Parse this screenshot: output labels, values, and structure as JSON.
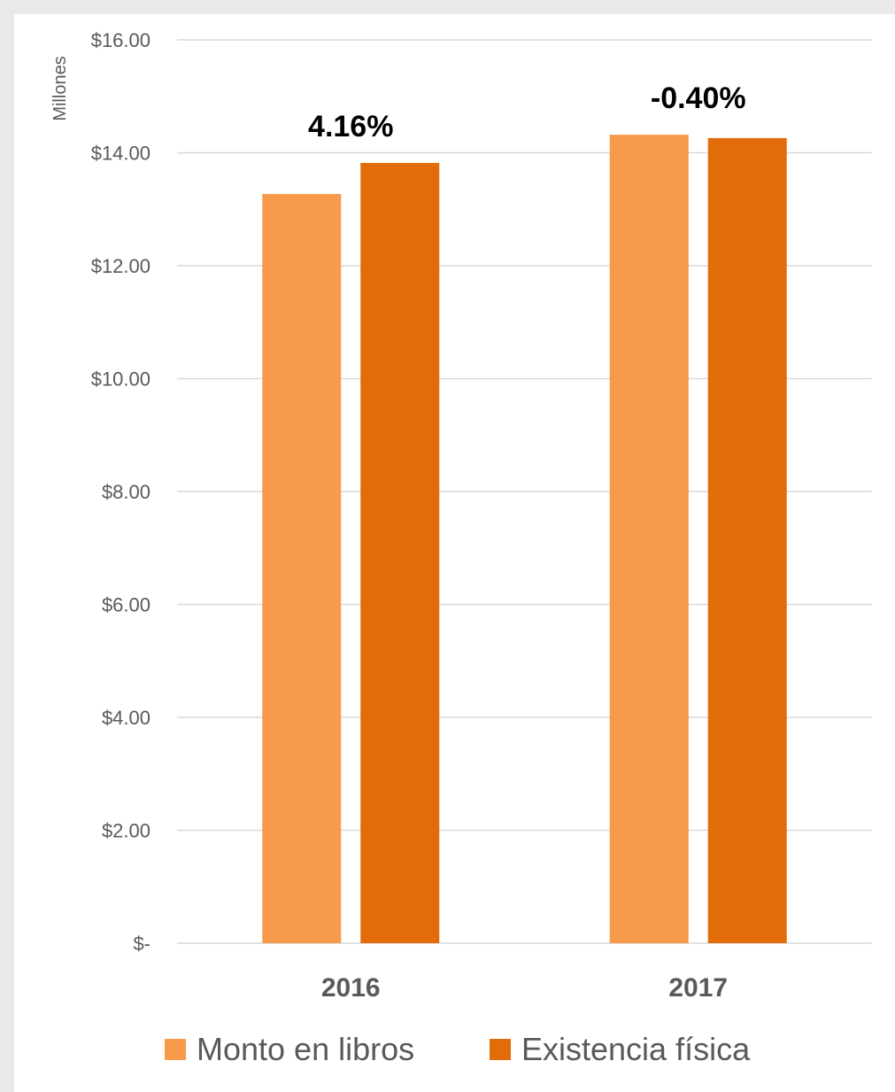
{
  "chart_data": {
    "type": "bar",
    "categories": [
      "2016",
      "2017"
    ],
    "series": [
      {
        "name": "Monto en libros",
        "color": "#f79a4c",
        "values": [
          13.27,
          14.32
        ]
      },
      {
        "name": "Existencia física",
        "color": "#e36c0a",
        "values": [
          13.82,
          14.26
        ]
      }
    ],
    "annotations": [
      "4.16%",
      "-0.40%"
    ],
    "ylabel": "Millones",
    "ylim": [
      0,
      16
    ],
    "yticks": [
      {
        "value": 0,
        "label": "$-"
      },
      {
        "value": 2,
        "label": "$2.00"
      },
      {
        "value": 4,
        "label": "$4.00"
      },
      {
        "value": 6,
        "label": "$6.00"
      },
      {
        "value": 8,
        "label": "$8.00"
      },
      {
        "value": 10,
        "label": "$10.00"
      },
      {
        "value": 12,
        "label": "$12.00"
      },
      {
        "value": 14,
        "label": "$14.00"
      },
      {
        "value": 16,
        "label": "$16.00"
      }
    ],
    "grid": true,
    "legend_position": "bottom"
  }
}
